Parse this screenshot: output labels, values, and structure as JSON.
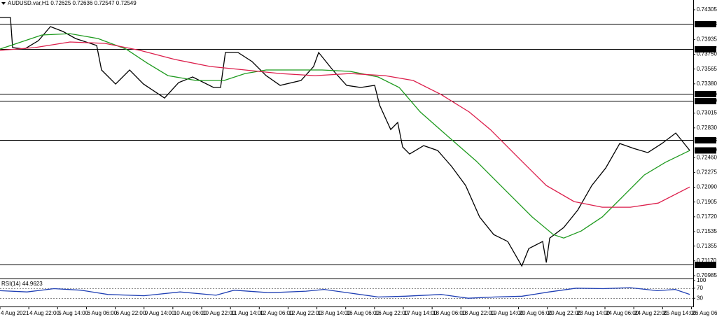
{
  "chart_data": [
    {
      "type": "line",
      "title": "AUDUSD.var,H1  0.72625 0.72636 0.72547 0.72549",
      "xlim": [
        0,
        385
      ],
      "xticks": [
        {
          "value": 0,
          "label": "4 Aug 2021"
        },
        {
          "value": 16,
          "label": "4 Aug 22:00"
        },
        {
          "value": 32,
          "label": "5 Aug 14:00"
        },
        {
          "value": 48,
          "label": "6 Aug 06:00"
        },
        {
          "value": 64,
          "label": "6 Aug 22:00"
        },
        {
          "value": 80,
          "label": "9 Aug 14:00"
        },
        {
          "value": 96,
          "label": "10 Aug 06:00"
        },
        {
          "value": 112,
          "label": "10 Aug 22:00"
        },
        {
          "value": 128,
          "label": "11 Aug 14:00"
        },
        {
          "value": 144,
          "label": "12 Aug 06:00"
        },
        {
          "value": 160,
          "label": "12 Aug 22:00"
        },
        {
          "value": 176,
          "label": "13 Aug 14:00"
        },
        {
          "value": 192,
          "label": "16 Aug 06:00"
        },
        {
          "value": 208,
          "label": "16 Aug 22:00"
        },
        {
          "value": 224,
          "label": "17 Aug 14:00"
        },
        {
          "value": 240,
          "label": "18 Aug 06:00"
        },
        {
          "value": 256,
          "label": "18 Aug 22:00"
        },
        {
          "value": 272,
          "label": "19 Aug 14:00"
        },
        {
          "value": 288,
          "label": "20 Aug 06:00"
        },
        {
          "value": 304,
          "label": "20 Aug 22:00"
        },
        {
          "value": 320,
          "label": "23 Aug 14:00"
        },
        {
          "value": 336,
          "label": "24 Aug 06:00"
        },
        {
          "value": 352,
          "label": "24 Aug 22:00"
        },
        {
          "value": 368,
          "label": "25 Aug 14:00"
        },
        {
          "value": 384,
          "label": "26 Aug 06:00"
        }
      ],
      "ylim": [
        0.7095,
        0.74427
      ],
      "yticks": [
        0.74305,
        0.73935,
        {
          "value": 0.7375,
          "label": "0.73750"
        },
        0.73565,
        {
          "value": 0.7338,
          "label": "0.73380"
        },
        0.73015,
        {
          "value": 0.7283,
          "label": "0.72830"
        },
        {
          "value": 0.7246,
          "label": "0.72460"
        },
        0.72275,
        {
          "value": 0.7209,
          "label": "0.72090"
        },
        0.71905,
        {
          "value": 0.7172,
          "label": "0.71720"
        },
        0.71535,
        0.71355,
        {
          "value": 0.7117,
          "label": "0.71170"
        },
        0.70985
      ],
      "grid": false,
      "levels": [
        0.74128,
        0.73817,
        0.73256,
        {
          "value": 0.7317,
          "label": "0.73170"
        },
        0.72678,
        0.71121
      ],
      "last_price": 0.72549,
      "series": [
        {
          "color": "#000000",
          "x": [
            0,
            5.8,
            7,
            13.6,
            21.4,
            28,
            35,
            42,
            53.7,
            56.4,
            64.2,
            72,
            79.7,
            91.4,
            99.2,
            107,
            118.6,
            122.5,
            125.2,
            132.2,
            140,
            147.8,
            155.6,
            167.2,
            174.2,
            177,
            184.8,
            192.5,
            200.3,
            208.1,
            210.8,
            217,
            220.9,
            223.6,
            227.5,
            235.3,
            243.1,
            250.9,
            258.6,
            266.4,
            274.2,
            282,
            289.8,
            293.7,
            301.4,
            303.4,
            305.3,
            313.1,
            320.9,
            328.7,
            336.4,
            344.2,
            352,
            359.8,
            367.6,
            375.3,
            383.1
          ],
          "values": [
            0.74209,
            0.74209,
            0.73833,
            0.73815,
            0.7392,
            0.74095,
            0.74034,
            0.73946,
            0.73859,
            0.73553,
            0.73378,
            0.73553,
            0.73378,
            0.73203,
            0.73396,
            0.73466,
            0.73335,
            0.73335,
            0.73772,
            0.73772,
            0.73658,
            0.73483,
            0.73361,
            0.73422,
            0.73597,
            0.73772,
            0.73553,
            0.73361,
            0.73335,
            0.73361,
            0.73116,
            0.7281,
            0.72898,
            0.72592,
            0.72504,
            0.72609,
            0.72548,
            0.72347,
            0.72111,
            0.71718,
            0.71499,
            0.71412,
            0.71106,
            0.71324,
            0.71412,
            0.7115,
            0.71455,
            0.71587,
            0.71805,
            0.72111,
            0.72329,
            0.72635,
            0.72574,
            0.72522,
            0.72635,
            0.72766,
            0.72549
          ]
        },
        {
          "color": "#1e9a1e",
          "x": [
            0,
            11.7,
            23.3,
            38.9,
            54.5,
            70,
            81.7,
            93.3,
            108.9,
            124.5,
            136.1,
            147.8,
            163.4,
            178.9,
            194.5,
            210,
            221.7,
            233.4,
            248.9,
            264.5,
            280,
            295.6,
            307.3,
            313.1,
            322.8,
            334.5,
            346.2,
            357.8,
            369.5,
            383.1
          ],
          "values": [
            0.73815,
            0.73903,
            0.7399,
            0.74007,
            0.73946,
            0.73815,
            0.7364,
            0.73483,
            0.73422,
            0.73422,
            0.73509,
            0.73553,
            0.73553,
            0.73553,
            0.73536,
            0.73466,
            0.73335,
            0.73029,
            0.72723,
            0.72417,
            0.72067,
            0.71718,
            0.71499,
            0.71455,
            0.71543,
            0.71718,
            0.7198,
            0.72242,
            0.72399,
            0.72548
          ]
        },
        {
          "color": "#dc1e4b",
          "x": [
            0,
            19.4,
            38.9,
            58.3,
            77.8,
            97.2,
            116.7,
            136.1,
            155.6,
            175,
            194.5,
            213.9,
            229.5,
            245,
            260.6,
            272.3,
            287.8,
            303.4,
            318.9,
            334.5,
            350.1,
            365.6,
            383.1
          ],
          "values": [
            0.73798,
            0.73833,
            0.73903,
            0.73885,
            0.73798,
            0.73684,
            0.73597,
            0.73553,
            0.73509,
            0.73483,
            0.73509,
            0.73483,
            0.73422,
            0.73247,
            0.73029,
            0.7281,
            0.7246,
            0.72111,
            0.7191,
            0.7184,
            0.7184,
            0.71892,
            0.72093
          ]
        }
      ]
    },
    {
      "type": "line",
      "title": "RSI(14) 44.9623",
      "xlim": [
        0,
        385
      ],
      "ylim": [
        0,
        100
      ],
      "yticks": [
        100,
        70,
        30
      ],
      "levels": [
        70,
        30
      ],
      "series": [
        {
          "color": "#1f3fb4",
          "x": [
            0,
            15,
            30,
            45,
            60,
            80,
            100,
            120,
            130,
            150,
            170,
            180,
            195,
            210,
            225,
            245,
            260,
            275,
            290,
            305,
            320,
            335,
            350,
            365,
            375,
            383.1
          ],
          "values": [
            60,
            55,
            68,
            62,
            45,
            40,
            55,
            42,
            62,
            52,
            58,
            65,
            50,
            35,
            38,
            45,
            30,
            35,
            38,
            55,
            70,
            68,
            72,
            60,
            65,
            44.9623
          ]
        }
      ]
    }
  ]
}
